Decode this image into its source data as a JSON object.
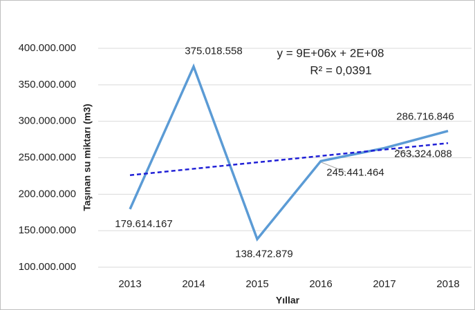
{
  "chart_data": {
    "type": "line",
    "y_axis_title": "Taşınan su miktarı (m3)",
    "x_axis_title": "Yıllar",
    "categories": [
      "2013",
      "2014",
      "2015",
      "2016",
      "2017",
      "2018"
    ],
    "series": [
      {
        "color": "#5b9bd5",
        "values": [
          179614167,
          375018558,
          138472879,
          245441464,
          263324088,
          286716846
        ],
        "value_labels": [
          "179.614.167",
          "375.018.558",
          "138.472.879",
          "245.441.464",
          "263.324.088",
          "286.716.846"
        ]
      }
    ],
    "trendline": {
      "color": "#1f1fd6",
      "equation": "y = 9E+06x + 2E+08",
      "r_squared": "R² = 0,0391",
      "values": [
        226140000,
        234920000,
        243710000,
        252490000,
        261270000,
        270050000
      ]
    },
    "ylim": [
      100000000,
      400000000
    ],
    "yticks": [
      {
        "value": 100000000,
        "label": "100.000.000"
      },
      {
        "value": 150000000,
        "label": "150.000.000"
      },
      {
        "value": 200000000,
        "label": "200.000.000"
      },
      {
        "value": 250000000,
        "label": "250.000.000"
      },
      {
        "value": 300000000,
        "label": "300.000.000"
      },
      {
        "value": 350000000,
        "label": "350.000.000"
      },
      {
        "value": 400000000,
        "label": "400.000.000"
      }
    ],
    "grid": true
  }
}
